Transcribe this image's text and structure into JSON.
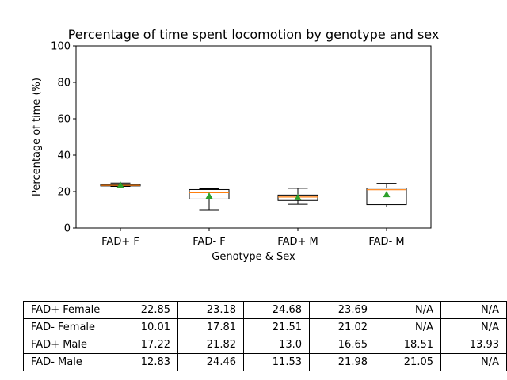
{
  "chart_data": {
    "type": "box",
    "title": "Percentage of time spent locomotion by genotype and sex",
    "xlabel": "Genotype & Sex",
    "ylabel": "Percentage of time (%)",
    "ylim": [
      0,
      100
    ],
    "yticks": [
      "0",
      "20",
      "40",
      "60",
      "80",
      "100"
    ],
    "categories": [
      "FAD+ F",
      "FAD- F",
      "FAD+ M",
      "FAD- M"
    ],
    "boxes": [
      {
        "whisker_low": 22.85,
        "q1": 23.1,
        "median": 23.4,
        "q3": 23.9,
        "whisker_high": 24.7,
        "mean": 23.6
      },
      {
        "whisker_low": 10.0,
        "q1": 15.9,
        "median": 19.4,
        "q3": 21.1,
        "whisker_high": 21.5,
        "mean": 17.6
      },
      {
        "whisker_low": 13.0,
        "q1": 15.1,
        "median": 17.0,
        "q3": 18.1,
        "whisker_high": 21.8,
        "mean": 16.8
      },
      {
        "whisker_low": 11.5,
        "q1": 12.8,
        "median": 21.0,
        "q3": 21.9,
        "whisker_high": 24.5,
        "mean": 18.4
      }
    ],
    "colors": {
      "median": "#ff7f0e",
      "mean": "#2ca02c",
      "box": "#000000"
    },
    "grid": false
  },
  "table": {
    "rows": [
      {
        "label": "FAD+ Female",
        "values": [
          "22.85",
          "23.18",
          "24.68",
          "23.69",
          "N/A",
          "N/A"
        ]
      },
      {
        "label": "FAD- Female",
        "values": [
          "10.01",
          "17.81",
          "21.51",
          "21.02",
          "N/A",
          "N/A"
        ]
      },
      {
        "label": "FAD+ Male",
        "values": [
          "17.22",
          "21.82",
          "13.0",
          "16.65",
          "18.51",
          "13.93"
        ]
      },
      {
        "label": "FAD- Male",
        "values": [
          "12.83",
          "24.46",
          "11.53",
          "21.98",
          "21.05",
          "N/A"
        ]
      }
    ]
  }
}
